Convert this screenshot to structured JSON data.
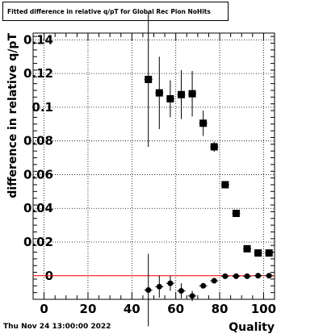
{
  "title": "Fitted difference in relative q/pT for Global Rec Pion NoHits",
  "footer_date": "Thu Nov 24 13:00:00 2022",
  "chart_data": {
    "type": "scatter",
    "title": "Fitted difference in relative q/pT for Global Rec Pion NoHits",
    "xlabel": "Quality",
    "ylabel": "difference in relative q/pT",
    "xlim": [
      -5,
      105
    ],
    "ylim": [
      -0.014,
      0.144
    ],
    "xticks": [
      "0",
      "20",
      "40",
      "60",
      "80",
      "100"
    ],
    "yticks": [
      "0",
      "0.02",
      "0.04",
      "0.06",
      "0.08",
      "0.1",
      "0.12",
      "0.14"
    ],
    "grid": true,
    "reference_line": {
      "y": 0,
      "color": "#ff0000"
    },
    "series": [
      {
        "marker": "square",
        "points": [
          {
            "x": 47.5,
            "y": 0.1165,
            "err": 0.04
          },
          {
            "x": 52.5,
            "y": 0.1085,
            "err": 0.0215
          },
          {
            "x": 57.5,
            "y": 0.105,
            "err": 0.011
          },
          {
            "x": 62.5,
            "y": 0.1075,
            "err": 0.0145
          },
          {
            "x": 67.5,
            "y": 0.108,
            "err": 0.0135
          },
          {
            "x": 72.5,
            "y": 0.0905,
            "err": 0.0075
          },
          {
            "x": 77.5,
            "y": 0.0765,
            "err": 0.003
          },
          {
            "x": 82.5,
            "y": 0.054,
            "err": 0.0008
          },
          {
            "x": 87.5,
            "y": 0.037,
            "err": 0.0005
          },
          {
            "x": 92.5,
            "y": 0.016,
            "err": 0.0005
          },
          {
            "x": 97.5,
            "y": 0.0135,
            "err": 0.0005
          },
          {
            "x": 102.5,
            "y": 0.0135,
            "err": 0.0005
          }
        ]
      },
      {
        "marker": "circle",
        "points": [
          {
            "x": 47.5,
            "y": -0.0085,
            "err": 0.0215
          },
          {
            "x": 52.5,
            "y": -0.0065,
            "err": 0.0065
          },
          {
            "x": 57.5,
            "y": -0.0045,
            "err": 0.0045
          },
          {
            "x": 62.5,
            "y": -0.009,
            "err": 0.0045
          },
          {
            "x": 67.5,
            "y": -0.012,
            "err": 0.003
          },
          {
            "x": 72.5,
            "y": -0.006,
            "err": 0.0015
          },
          {
            "x": 77.5,
            "y": -0.003,
            "err": 0.0005
          },
          {
            "x": 82.5,
            "y": -0.0003,
            "err": 0.0003
          },
          {
            "x": 87.5,
            "y": -0.0003,
            "err": 0.0002
          },
          {
            "x": 92.5,
            "y": -0.0003,
            "err": 0.0002
          },
          {
            "x": 97.5,
            "y": 0.0,
            "err": 0.0002
          },
          {
            "x": 102.5,
            "y": 0.0,
            "err": 0.0002
          }
        ]
      }
    ]
  }
}
